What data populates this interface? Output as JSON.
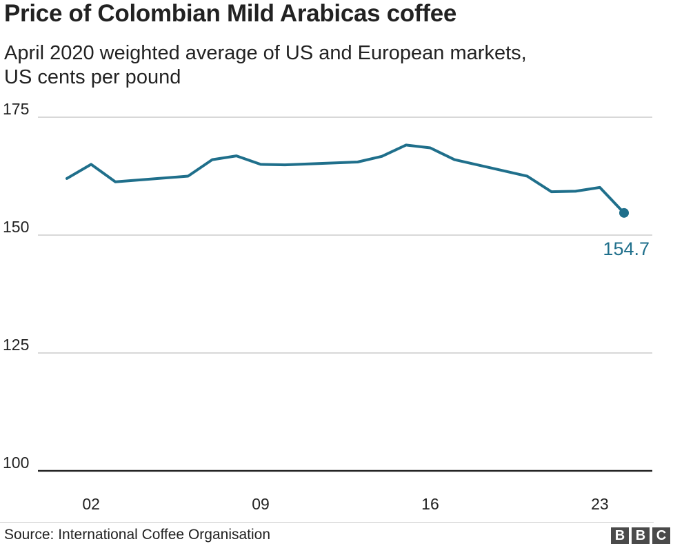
{
  "chart_data": {
    "type": "line",
    "title": "Price of Colombian Mild Arabicas coffee",
    "subtitle_lines": [
      "April 2020 weighted average of US and European markets,",
      "US cents per pound"
    ],
    "ylim": [
      100,
      175
    ],
    "yticks": [
      175,
      150,
      125,
      100
    ],
    "xlim": [
      1,
      24
    ],
    "xticks": [
      2,
      9,
      16,
      23
    ],
    "xtick_labels": [
      "02",
      "09",
      "16",
      "23"
    ],
    "grid": true,
    "series": [
      {
        "x": [
          1,
          2,
          3,
          6,
          7,
          8,
          9,
          10,
          13,
          14,
          15,
          16,
          17,
          20,
          21,
          22,
          23,
          24
        ],
        "values": [
          162.0,
          165.0,
          161.3,
          162.5,
          166.0,
          166.8,
          165.0,
          164.9,
          165.5,
          166.7,
          169.1,
          168.5,
          166.0,
          162.5,
          159.2,
          159.3,
          160.1,
          154.7
        ]
      }
    ],
    "end_label": "154.7",
    "line_color": "#1f6f8b"
  },
  "footer": {
    "source": "Source: International Coffee Organisation",
    "logo_letters": [
      "B",
      "B",
      "C"
    ]
  }
}
